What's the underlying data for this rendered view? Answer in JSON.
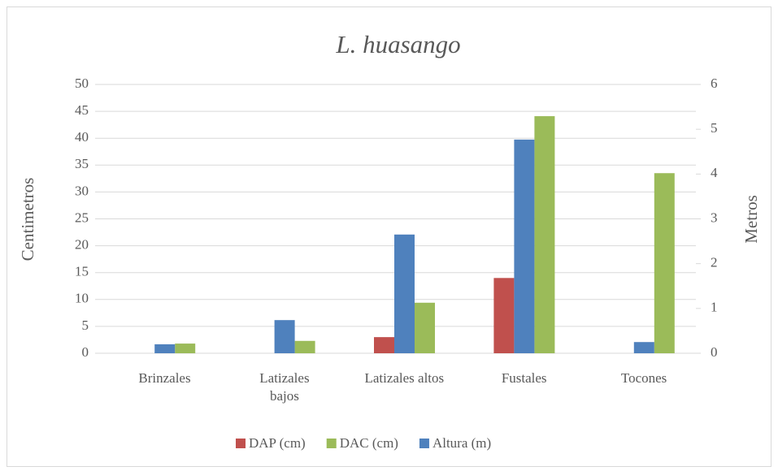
{
  "chart_data": {
    "type": "bar",
    "title": "L. huasango",
    "categories": [
      "Brinzales",
      "Latizales\nbajos",
      "Latizales altos",
      "Fustales",
      "Tocones"
    ],
    "series": [
      {
        "name": "DAP (cm)",
        "color": "#c0504d",
        "values": [
          0,
          0,
          3.0,
          14.0,
          0
        ]
      },
      {
        "name": "DAC (cm)",
        "color": "#9bbb59",
        "values": [
          1.8,
          2.3,
          9.4,
          44.1,
          33.5
        ]
      },
      {
        "name": "Altura (m)",
        "color": "#4f81bd",
        "axis": "y2",
        "values": [
          0.2,
          0.74,
          2.65,
          4.77,
          0.25
        ]
      }
    ],
    "ylabel": "Centimetros",
    "y2label": "Metros",
    "ylim": [
      0,
      50
    ],
    "yticks": [
      0,
      5,
      10,
      15,
      20,
      25,
      30,
      35,
      40,
      45,
      50
    ],
    "y2lim": [
      0,
      6
    ],
    "y2ticks": [
      0,
      1,
      2,
      3,
      4,
      5,
      6
    ],
    "grid": true,
    "legend": "bottom"
  }
}
